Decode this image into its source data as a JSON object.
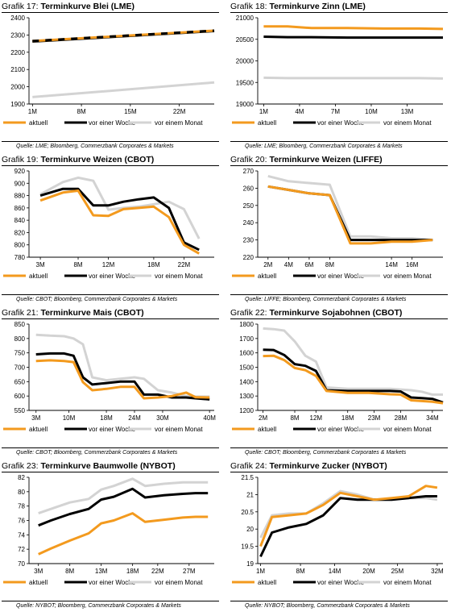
{
  "colors": {
    "aktuell": "#f39a1e",
    "woche": "#000000",
    "monat": "#d3d3d3"
  },
  "legend": {
    "aktuell": "aktuell",
    "woche": "vor einer Woche",
    "monat": "vor einem Monat"
  },
  "panels": [
    {
      "title_prefix": "Grafik 17:",
      "title": "Terminkurve Blei (LME)",
      "source": "Quelle: LME; Bloomberg, Commerzbank Corporates & Markets",
      "chart_data": {
        "type": "line",
        "ylim": [
          1900,
          2400
        ],
        "yticks": [
          1900,
          2000,
          2100,
          2200,
          2300,
          2400
        ],
        "xlim": [
          0.5,
          27
        ],
        "xticks": [
          1,
          8,
          15,
          22
        ],
        "xticklabels": [
          "1M",
          "8M",
          "15M",
          "22M"
        ],
        "series": [
          {
            "name": "aktuell",
            "x": [
              1,
              27
            ],
            "values": [
              2265,
              2325
            ]
          },
          {
            "name": "vor einer Woche",
            "x": [
              1,
              27
            ],
            "values": [
              2262,
              2323
            ]
          },
          {
            "name": "vor einem Monat",
            "x": [
              1,
              27
            ],
            "values": [
              1940,
              2025
            ]
          }
        ]
      }
    },
    {
      "title_prefix": "Grafik 18:",
      "title": "Terminkurve Zinn (LME)",
      "source": "Quelle: LME; Bloomberg, Commerzbank Corporates & Markets",
      "chart_data": {
        "type": "line",
        "ylim": [
          19000,
          21000
        ],
        "yticks": [
          19000,
          19500,
          20000,
          20500,
          21000
        ],
        "xlim": [
          0.5,
          16
        ],
        "xticks": [
          1,
          4,
          7,
          10,
          13
        ],
        "xticklabels": [
          "1M",
          "4M",
          "7M",
          "10M",
          "13M"
        ],
        "series": [
          {
            "name": "aktuell",
            "x": [
              1,
              3,
              5,
              8,
              11,
              14,
              16
            ],
            "values": [
              20800,
              20800,
              20760,
              20760,
              20750,
              20750,
              20740
            ]
          },
          {
            "name": "vor einer Woche",
            "x": [
              1,
              3,
              5,
              8,
              11,
              14,
              16
            ],
            "values": [
              20560,
              20550,
              20550,
              20540,
              20540,
              20540,
              20540
            ]
          },
          {
            "name": "vor einem Monat",
            "x": [
              1,
              3,
              5,
              8,
              11,
              14,
              16
            ],
            "values": [
              19610,
              19600,
              19600,
              19600,
              19600,
              19600,
              19590
            ]
          }
        ]
      }
    },
    {
      "title_prefix": "Grafik 19:",
      "title": "Terminkurve Weizen (CBOT)",
      "source": "Quelle: CBOT; Bloomberg, Commerzbank Corporates & Markets",
      "chart_data": {
        "type": "line",
        "ylim": [
          780,
          920
        ],
        "yticks": [
          780,
          800,
          820,
          840,
          860,
          880,
          900,
          920
        ],
        "xlim": [
          1.5,
          26
        ],
        "xticks": [
          3,
          8,
          12,
          18,
          22
        ],
        "xticklabels": [
          "3M",
          "8M",
          "12M",
          "18M",
          "22M"
        ],
        "series": [
          {
            "name": "aktuell",
            "x": [
              3,
              6,
              8,
              10,
              12,
              14,
              16,
              18,
              20,
              22,
              24
            ],
            "values": [
              872,
              885,
              888,
              848,
              847,
              858,
              860,
              862,
              845,
              800,
              786
            ]
          },
          {
            "name": "vor einer Woche",
            "x": [
              3,
              6,
              8,
              10,
              12,
              14,
              16,
              18,
              20,
              22,
              24
            ],
            "values": [
              880,
              891,
              891,
              864,
              864,
              870,
              874,
              877,
              860,
              804,
              792
            ]
          },
          {
            "name": "vor einem Monat",
            "x": [
              3,
              6,
              8,
              10,
              12,
              14,
              16,
              18,
              20,
              22,
              24
            ],
            "values": [
              882,
              902,
              909,
              904,
              857,
              860,
              862,
              866,
              870,
              858,
              810
            ]
          }
        ]
      }
    },
    {
      "title_prefix": "Grafik 20:",
      "title": "Terminkurve Weizen (LIFFE)",
      "source": "Quelle: LIFFE; Bloomberg, Commerzbank Corporates & Markets",
      "chart_data": {
        "type": "line",
        "ylim": [
          220,
          270
        ],
        "yticks": [
          220,
          230,
          240,
          250,
          260,
          270
        ],
        "xlim": [
          1,
          19
        ],
        "xticks": [
          2,
          4,
          6,
          8,
          14,
          16
        ],
        "xticklabels": [
          "2M",
          "4M",
          "6M",
          "8M",
          "14M",
          "16M"
        ],
        "series": [
          {
            "name": "aktuell",
            "x": [
              2,
              4,
              6,
              8,
              10,
              12,
              14,
              16,
              18
            ],
            "values": [
              261,
              259,
              257,
              256,
              228,
              228,
              229,
              229,
              230
            ]
          },
          {
            "name": "vor einer Woche",
            "x": [
              2,
              4,
              6,
              8,
              10,
              12,
              14,
              16,
              18
            ],
            "values": [
              261,
              259,
              257,
              256,
              230,
              230,
              230,
              230,
              230
            ]
          },
          {
            "name": "vor einem Monat",
            "x": [
              2,
              4,
              6,
              8,
              10,
              12,
              14,
              16,
              18
            ],
            "values": [
              267,
              264,
              263,
              262,
              232,
              232,
              231,
              231,
              230
            ]
          }
        ]
      }
    },
    {
      "title_prefix": "Grafik 21:",
      "title": "Terminkurve Mais (CBOT)",
      "source": "Quelle: CBOT; Bloomberg, Commerzbank Corporates & Markets",
      "chart_data": {
        "type": "line",
        "ylim": [
          550,
          850
        ],
        "yticks": [
          550,
          600,
          650,
          700,
          750,
          800,
          850
        ],
        "xlim": [
          1.5,
          41
        ],
        "xticks": [
          3,
          10,
          18,
          24,
          30,
          40
        ],
        "xticklabels": [
          "3M",
          "10M",
          "18M",
          "24M",
          "30M",
          "40M"
        ],
        "series": [
          {
            "name": "aktuell",
            "x": [
              3,
              6,
              9,
              11,
              13,
              15,
              18,
              21,
              24,
              26,
              29,
              32,
              35,
              37,
              40
            ],
            "values": [
              722,
              724,
              722,
              718,
              648,
              620,
              625,
              632,
              632,
              592,
              595,
              600,
              612,
              596,
              595
            ]
          },
          {
            "name": "vor einer Woche",
            "x": [
              3,
              6,
              9,
              11,
              13,
              15,
              18,
              21,
              24,
              26,
              29,
              32,
              35,
              37,
              40
            ],
            "values": [
              745,
              748,
              748,
              740,
              665,
              640,
              645,
              650,
              650,
              605,
              605,
              595,
              595,
              592,
              588
            ]
          },
          {
            "name": "vor einem Monat",
            "x": [
              3,
              6,
              9,
              11,
              13,
              15,
              18,
              21,
              24,
              26,
              29,
              32,
              35,
              37,
              40
            ],
            "values": [
              813,
              810,
              808,
              800,
              780,
              665,
              655,
              660,
              665,
              660,
              620,
              612,
              600,
              598,
              598
            ]
          }
        ]
      }
    },
    {
      "title_prefix": "Grafik 22:",
      "title": "Terminkurve Sojabohnen (CBOT)",
      "source": "Quelle: CBOT; Bloomberg, Commerzbank Corporates & Markets",
      "chart_data": {
        "type": "line",
        "ylim": [
          1200,
          1800
        ],
        "yticks": [
          1200,
          1300,
          1400,
          1500,
          1600,
          1700,
          1800
        ],
        "xlim": [
          1,
          36
        ],
        "xticks": [
          2,
          8,
          12,
          18,
          23,
          28,
          34
        ],
        "xticklabels": [
          "2M",
          "8M",
          "12M",
          "18M",
          "23M",
          "28M",
          "34M"
        ],
        "series": [
          {
            "name": "aktuell",
            "x": [
              2,
              4,
              6,
              8,
              10,
              12,
              14,
              18,
              22,
              26,
              28,
              30,
              32,
              34,
              36
            ],
            "values": [
              1578,
              1580,
              1550,
              1495,
              1480,
              1440,
              1335,
              1322,
              1322,
              1312,
              1310,
              1270,
              1265,
              1260,
              1250
            ]
          },
          {
            "name": "vor einer Woche",
            "x": [
              2,
              4,
              6,
              8,
              10,
              12,
              14,
              18,
              22,
              26,
              28,
              30,
              32,
              34,
              36
            ],
            "values": [
              1622,
              1620,
              1585,
              1522,
              1510,
              1475,
              1340,
              1335,
              1335,
              1335,
              1332,
              1290,
              1285,
              1280,
              1255
            ]
          },
          {
            "name": "vor einem Monat",
            "x": [
              2,
              4,
              6,
              8,
              10,
              12,
              14,
              18,
              22,
              26,
              28,
              30,
              32,
              34,
              36
            ],
            "values": [
              1770,
              1765,
              1755,
              1680,
              1580,
              1540,
              1360,
              1350,
              1350,
              1350,
              1345,
              1340,
              1330,
              1310,
              1310
            ]
          }
        ]
      }
    },
    {
      "title_prefix": "Grafik 23:",
      "title": "Terminkurve Baumwolle (NYBOT)",
      "source": "Quelle: NYBOT; Bloomberg, Commerzbank Corporates & Markets",
      "chart_data": {
        "type": "line",
        "ylim": [
          70,
          82
        ],
        "yticks": [
          70,
          72,
          74,
          76,
          78,
          80,
          82
        ],
        "xlim": [
          1.5,
          31
        ],
        "xticks": [
          3,
          8,
          13,
          18,
          22,
          27
        ],
        "xticklabels": [
          "3M",
          "8M",
          "13M",
          "18M",
          "22M",
          "27M"
        ],
        "series": [
          {
            "name": "aktuell",
            "x": [
              3,
              5,
              8,
              11,
              13,
              15,
              18,
              20,
              23,
              26,
              28,
              30
            ],
            "values": [
              71.3,
              72.1,
              73.2,
              74.2,
              75.6,
              76.0,
              77.0,
              75.8,
              76.1,
              76.4,
              76.5,
              76.5
            ]
          },
          {
            "name": "vor einer Woche",
            "x": [
              3,
              5,
              8,
              11,
              13,
              15,
              18,
              20,
              23,
              26,
              28,
              30
            ],
            "values": [
              75.3,
              76.0,
              76.9,
              77.6,
              78.9,
              79.3,
              80.4,
              79.2,
              79.5,
              79.7,
              79.8,
              79.8
            ]
          },
          {
            "name": "vor einem Monat",
            "x": [
              3,
              5,
              8,
              11,
              13,
              15,
              18,
              20,
              23,
              26,
              28,
              30
            ],
            "values": [
              77.0,
              77.6,
              78.5,
              79.0,
              80.3,
              80.8,
              81.8,
              80.8,
              81.1,
              81.3,
              81.3,
              81.3
            ]
          }
        ]
      }
    },
    {
      "title_prefix": "Grafik 24:",
      "title": "Terminkurve Zucker (NYBOT)",
      "source": "Quelle: NYBOT; Bloomberg, Commerzbank Corporates & Markets",
      "chart_data": {
        "type": "line",
        "ylim": [
          19.0,
          21.5
        ],
        "yticks": [
          19.0,
          19.5,
          20.0,
          20.5,
          21.0,
          21.5
        ],
        "xlim": [
          0.5,
          33
        ],
        "xticks": [
          1,
          8,
          14,
          20,
          25,
          32
        ],
        "xticklabels": [
          "1M",
          "8M",
          "14M",
          "20M",
          "25M",
          "32M"
        ],
        "series": [
          {
            "name": "aktuell",
            "x": [
              1,
              3,
              6,
              9,
              12,
              15,
              18,
              21,
              24,
              27,
              30,
              32
            ],
            "values": [
              19.5,
              20.35,
              20.4,
              20.45,
              20.7,
              21.05,
              20.95,
              20.85,
              20.9,
              20.95,
              21.25,
              21.2
            ]
          },
          {
            "name": "vor einer Woche",
            "x": [
              1,
              3,
              6,
              9,
              12,
              15,
              18,
              21,
              24,
              27,
              30,
              32
            ],
            "values": [
              19.2,
              19.9,
              20.05,
              20.15,
              20.4,
              20.9,
              20.85,
              20.85,
              20.85,
              20.9,
              20.95,
              20.95
            ]
          },
          {
            "name": "vor einem Monat",
            "x": [
              1,
              3,
              6,
              9,
              12,
              15,
              18,
              21,
              24,
              27,
              30,
              32
            ],
            "values": [
              19.75,
              20.4,
              20.45,
              20.45,
              20.75,
              21.1,
              21.0,
              20.85,
              20.85,
              20.9,
              20.9,
              20.85
            ]
          }
        ]
      }
    }
  ]
}
